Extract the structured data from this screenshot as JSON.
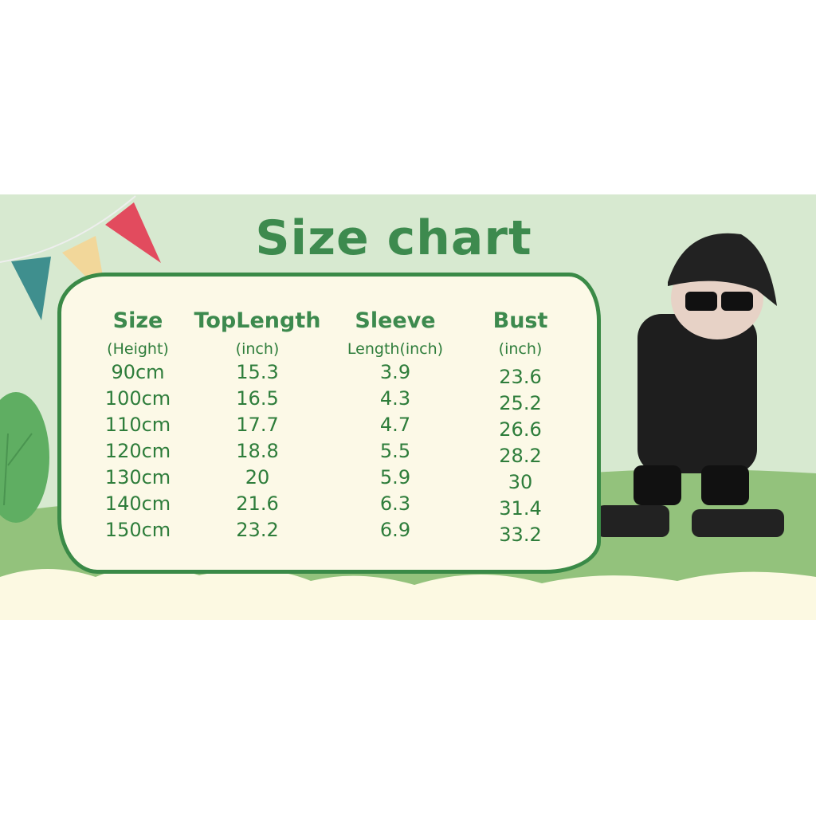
{
  "title": "Size chart",
  "columns": [
    {
      "header": "Size",
      "sub": "(Height)"
    },
    {
      "header": "TopLength",
      "sub": "(inch)"
    },
    {
      "header": "Sleeve",
      "sub": "Length(inch)"
    },
    {
      "header": "Bust",
      "sub": "(inch)"
    }
  ],
  "rows": [
    [
      "90cm",
      "15.3",
      "3.9",
      "23.6"
    ],
    [
      "100cm",
      "16.5",
      "4.3",
      "25.2"
    ],
    [
      "110cm",
      "17.7",
      "4.7",
      "26.6"
    ],
    [
      "120cm",
      "18.8",
      "5.5",
      "28.2"
    ],
    [
      "130cm",
      "20",
      "5.9",
      "30"
    ],
    [
      "140cm",
      "21.6",
      "6.3",
      "31.4"
    ],
    [
      "150cm",
      "23.2",
      "6.9",
      "33.2"
    ]
  ],
  "colors": {
    "text": "#2e7d3b",
    "background": "#d7e9d0",
    "card": "#fcf9e7",
    "hill": "#93c27c"
  },
  "icons": [
    "bunting-flags",
    "bush",
    "boy-model-figure"
  ]
}
